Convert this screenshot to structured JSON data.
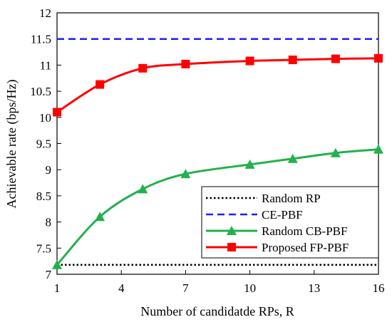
{
  "chart_data": {
    "type": "line",
    "title": "",
    "xlabel": "Number of candidatde RPs, R",
    "ylabel": "Achievable rate (bps/Hz)",
    "xlim": [
      1,
      16
    ],
    "ylim": [
      7,
      12
    ],
    "xticks": [
      1,
      4,
      7,
      10,
      13,
      16
    ],
    "yticks": [
      7,
      7.5,
      8,
      8.5,
      9,
      9.5,
      10,
      10.5,
      11,
      11.5,
      12
    ],
    "grid": false,
    "legend_position": "bottom-right",
    "series": [
      {
        "name": "Random RP",
        "style": "dotted",
        "marker": "none",
        "color": "#000000",
        "x": [
          1,
          16
        ],
        "y": [
          7.18,
          7.18
        ]
      },
      {
        "name": "CE-PBF",
        "style": "dashed",
        "marker": "none",
        "color": "#1f1fff",
        "x": [
          1,
          16
        ],
        "y": [
          11.5,
          11.5
        ]
      },
      {
        "name": "Random CB-PBF",
        "style": "solid",
        "marker": "triangle",
        "color": "#22b14c",
        "x": [
          1,
          3,
          5,
          7,
          10,
          12,
          14,
          16
        ],
        "y": [
          7.18,
          8.1,
          8.63,
          8.92,
          9.1,
          9.21,
          9.32,
          9.39
        ]
      },
      {
        "name": "Proposed FP-PBF",
        "style": "solid",
        "marker": "square",
        "color": "#ff0000",
        "x": [
          1,
          3,
          5,
          7,
          10,
          12,
          14,
          16
        ],
        "y": [
          10.1,
          10.63,
          10.94,
          11.02,
          11.08,
          11.1,
          11.12,
          11.13
        ]
      }
    ]
  }
}
